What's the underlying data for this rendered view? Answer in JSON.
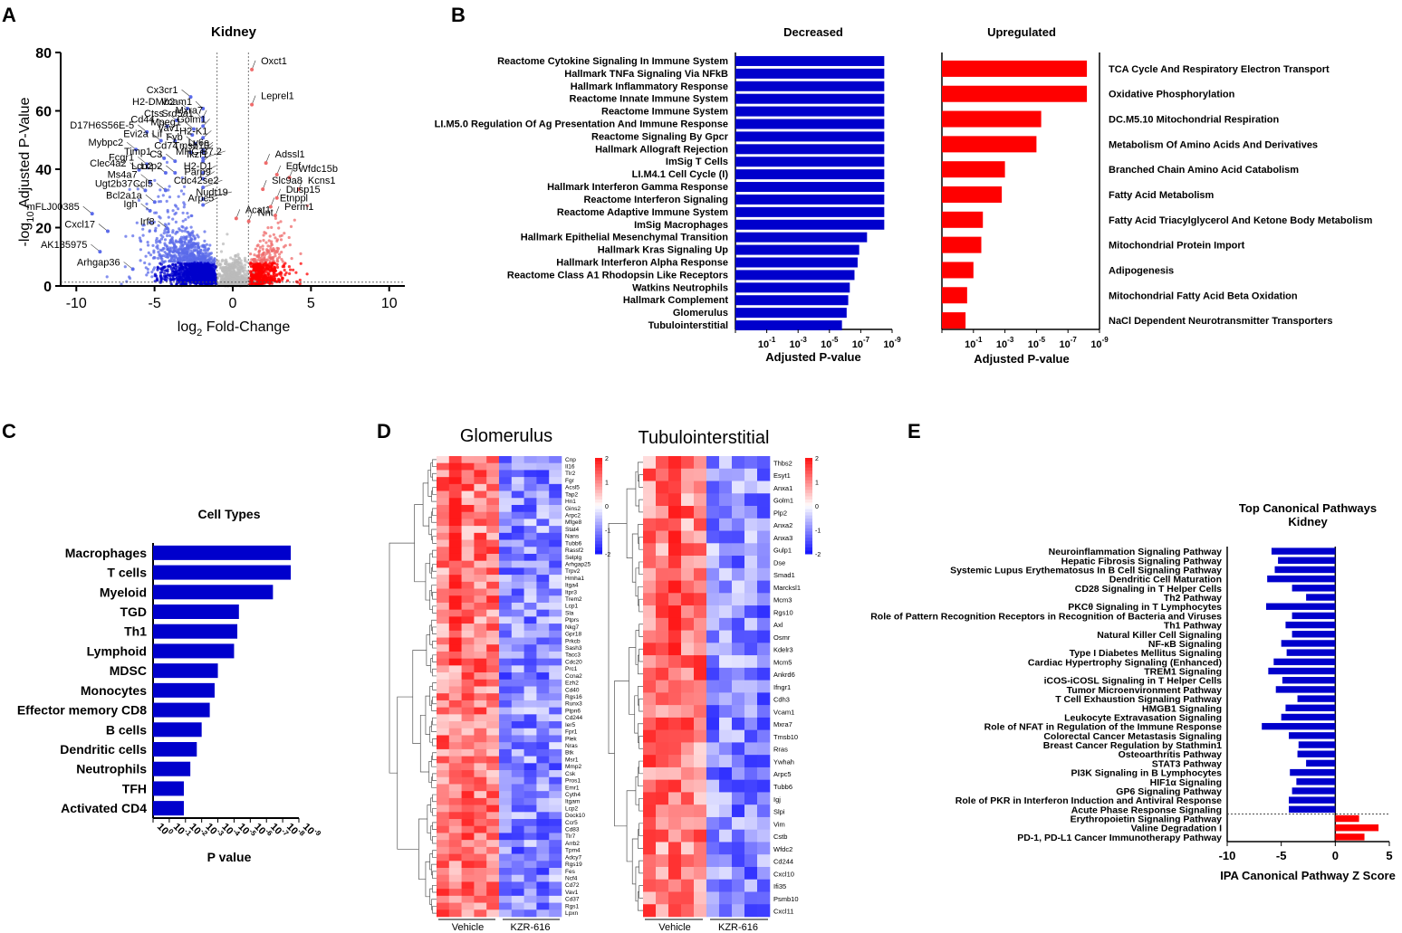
{
  "panels": {
    "A": {
      "letter": "A",
      "title": "Kidney",
      "xlabel": "log",
      "xlabel_sub": "2",
      "xlabel_rest": " Fold-Change",
      "ylabel_pre": "-log",
      "ylabel_sub": "10",
      "ylabel_rest": " Adjusted P-Value"
    },
    "B": {
      "letter": "B",
      "left_title": "Decreased",
      "right_title": "Upregulated",
      "xlabel": "Adjusted P-value"
    },
    "C": {
      "letter": "C",
      "title": "Cell Types",
      "xlabel": "P value"
    },
    "D": {
      "letter": "D",
      "left_title": "Glomerulus",
      "right_title": "Tubulointerstitial",
      "group1": "Vehicle",
      "group2": "KZR-616"
    },
    "E": {
      "letter": "E",
      "title_line1": "Top Canonical Pathways",
      "title_line2": "Kidney",
      "xlabel": "IPA Canonical Pathway Z Score"
    }
  },
  "chart_data": [
    {
      "panel": "A",
      "type": "scatter",
      "title": "Kidney",
      "xlim": [
        -11,
        11
      ],
      "ylim": [
        0,
        80
      ],
      "xticks": [
        -10,
        -5,
        0,
        5,
        10
      ],
      "yticks": [
        0,
        20,
        40,
        60,
        80
      ],
      "labeled_points": [
        {
          "label": "Oxct1",
          "x": 1.8,
          "y": 76
        },
        {
          "label": "Leprel1",
          "x": 1.8,
          "y": 64
        },
        {
          "label": "Cx3cr1",
          "x": -3.5,
          "y": 66
        },
        {
          "label": "Vcam1",
          "x": -2.6,
          "y": 62
        },
        {
          "label": "H2-DMb2",
          "x": -3.7,
          "y": 62
        },
        {
          "label": "Srd5a1",
          "x": -2.5,
          "y": 58
        },
        {
          "label": "Ctss",
          "x": -4.4,
          "y": 58
        },
        {
          "label": "Mxra7",
          "x": -1.9,
          "y": 59
        },
        {
          "label": "Cd44",
          "x": -5.0,
          "y": 56
        },
        {
          "label": "Mpeg1",
          "x": -3.3,
          "y": 55
        },
        {
          "label": "Golm1",
          "x": -1.7,
          "y": 56
        },
        {
          "label": "D17H6S56E-5",
          "x": -6.3,
          "y": 54
        },
        {
          "label": "Vav1",
          "x": -3.4,
          "y": 53
        },
        {
          "label": "H2-K1",
          "x": -1.6,
          "y": 52
        },
        {
          "label": "Evi2a",
          "x": -5.4,
          "y": 51
        },
        {
          "label": "Lif",
          "x": -4.5,
          "y": 51
        },
        {
          "label": "Fyb",
          "x": -3.2,
          "y": 50
        },
        {
          "label": "Ly6e",
          "x": -1.5,
          "y": 48
        },
        {
          "label": "Mybpc2",
          "x": -7.0,
          "y": 48
        },
        {
          "label": "Cd74",
          "x": -3.5,
          "y": 47
        },
        {
          "label": "Tmsb10",
          "x": -1.5,
          "y": 47
        },
        {
          "label": "Timp1",
          "x": -5.2,
          "y": 45
        },
        {
          "label": "C3",
          "x": -4.5,
          "y": 44
        },
        {
          "label": "Ikzf1",
          "x": -1.6,
          "y": 44
        },
        {
          "label": "MHC B7.2",
          "x": -0.7,
          "y": 45
        },
        {
          "label": "Adssl1",
          "x": 2.7,
          "y": 44
        },
        {
          "label": "Fcgr1",
          "x": -6.3,
          "y": 43
        },
        {
          "label": "Egf",
          "x": 3.4,
          "y": 40
        },
        {
          "label": "Clec4a2",
          "x": -6.8,
          "y": 41
        },
        {
          "label": "Lcn2",
          "x": -5.1,
          "y": 40
        },
        {
          "label": "Lcp2",
          "x": -4.5,
          "y": 40
        },
        {
          "label": "H2-D1",
          "x": -1.3,
          "y": 40
        },
        {
          "label": "Wfdc15b",
          "x": 4.2,
          "y": 39
        },
        {
          "label": "Ms4a7",
          "x": -6.1,
          "y": 37
        },
        {
          "label": "Parp9",
          "x": -1.4,
          "y": 38
        },
        {
          "label": "Kcns1",
          "x": 4.8,
          "y": 35
        },
        {
          "label": "Cdc42se2",
          "x": -0.9,
          "y": 35
        },
        {
          "label": "Slc9a8",
          "x": 2.5,
          "y": 35
        },
        {
          "label": "Ugt2b37",
          "x": -6.4,
          "y": 34
        },
        {
          "label": "Ccl5",
          "x": -5.1,
          "y": 34
        },
        {
          "label": "Dusp15",
          "x": 3.4,
          "y": 32
        },
        {
          "label": "Nudt19",
          "x": -0.3,
          "y": 31
        },
        {
          "label": "Bcl2a1a",
          "x": -5.8,
          "y": 30
        },
        {
          "label": "Etnppl",
          "x": 3.0,
          "y": 29
        },
        {
          "label": "Arpc5",
          "x": -1.2,
          "y": 29
        },
        {
          "label": "Igh",
          "x": -6.1,
          "y": 27
        },
        {
          "label": "Perm1",
          "x": 3.3,
          "y": 26
        },
        {
          "label": "mFLJ00385",
          "x": -9.8,
          "y": 26
        },
        {
          "label": "Acat1",
          "x": 0.8,
          "y": 25
        },
        {
          "label": "Nnt",
          "x": 1.6,
          "y": 24
        },
        {
          "label": "Irf8",
          "x": -5.0,
          "y": 21
        },
        {
          "label": "Cxcl17",
          "x": -8.8,
          "y": 20
        },
        {
          "label": "AK135975",
          "x": -9.3,
          "y": 13
        },
        {
          "label": "Arhgap36",
          "x": -7.2,
          "y": 7
        }
      ]
    },
    {
      "panel": "B-decreased",
      "type": "bar",
      "orientation": "horizontal",
      "xaxis": "-log10 adjusted P-value",
      "xticks": [
        "10",
        "-1",
        "10",
        "-3",
        "10",
        "-5",
        "10",
        "-7",
        "10",
        "-9"
      ],
      "xlim": [
        1,
        -9
      ],
      "categories": [
        "Reactome Cytokine Signaling In Immune System",
        "Hallmark TNFa Signaling Via NFkB",
        "Hallmark Inflammatory Response",
        "Reactome Innate Immune System",
        "Reactome Immune System",
        "LI.M5.0 Regulation Of Ag Presentation And Immune Response",
        "Reactome Signaling By Gpcr",
        "Hallmark Allograft Rejection",
        "ImSig T Cells",
        "LI.M4.1 Cell Cycle (I)",
        "Hallmark Interferon Gamma Response",
        "Reactome Interferon Signaling",
        "Reactome Adaptive Immune System",
        "ImSig Macrophages",
        "Hallmark Epithelial Mesenchymal Transition",
        "Hallmark Kras Signaling Up",
        "Hallmark Interferon Alpha Response",
        "Reactome Class A1 Rhodopsin Like Receptors",
        "Watkins Neutrophils",
        "Hallmark Complement",
        "Glomerulus",
        "Tubulointerstitial"
      ],
      "values": [
        -8.5,
        -8.5,
        -8.5,
        -8.5,
        -8.5,
        -8.5,
        -8.5,
        -8.5,
        -8.5,
        -8.5,
        -8.5,
        -8.5,
        -8.5,
        -8.5,
        -7.4,
        -6.9,
        -6.8,
        -6.6,
        -6.3,
        -6.2,
        -6.1,
        -5.8
      ]
    },
    {
      "panel": "B-upregulated",
      "type": "bar",
      "orientation": "horizontal",
      "xaxis": "-log10 adjusted P-value",
      "xlim": [
        1,
        -9
      ],
      "categories": [
        "TCA Cycle And Respiratory Electron Transport",
        "Oxidative Phosphorylation",
        "DC.M5.10 Mitochondrial Respiration",
        "Metabolism Of Amino Acids And Derivatives",
        "Branched Chain Amino Acid Catabolism",
        "Fatty Acid Metabolism",
        "Fatty Acid Triacylglycerol And Ketone Body Metabolism",
        "Mitochondrial Protein Import",
        "Adipogenesis",
        "Mitochondrial Fatty Acid Beta Oxidation",
        "NaCl Dependent Neurotransmitter Transporters"
      ],
      "values": [
        -8.2,
        -8.2,
        -5.3,
        -5.0,
        -3.0,
        -2.8,
        -1.6,
        -1.5,
        -1.0,
        -0.6,
        -0.5
      ]
    },
    {
      "panel": "C",
      "type": "bar",
      "orientation": "horizontal",
      "title": "Cell Types",
      "xlabel": "P value",
      "xticks": [
        "10",
        "0",
        "10",
        "-1",
        "10",
        "-2",
        "10",
        "-3",
        "10",
        "-4",
        "10",
        "-5",
        "10",
        "-6",
        "10",
        "-7",
        "10",
        "-8",
        "10",
        "-9"
      ],
      "xlim": [
        0,
        -9
      ],
      "categories": [
        "Macrophages",
        "T cells",
        "Myeloid",
        "TGD",
        "Th1",
        "Lymphoid",
        "MDSC",
        "Monocytes",
        "Effector memory CD8",
        "B cells",
        "Dendritic cells",
        "Neutrophils",
        "TFH",
        "Activated CD4"
      ],
      "values": [
        -8.5,
        -8.5,
        -7.4,
        -5.3,
        -5.2,
        -5.0,
        -4.0,
        -3.8,
        -3.5,
        -3.0,
        -2.7,
        -2.3,
        -1.9,
        -1.9
      ]
    },
    {
      "panel": "D-glomerulus",
      "type": "heatmap",
      "title": "Glomerulus",
      "groups": [
        "Vehicle",
        "KZR-616"
      ],
      "colorbar_ticks": [
        "2",
        "1",
        "0",
        "-1",
        "-2"
      ],
      "rows": [
        "Cnp",
        "Il16",
        "Tlr2",
        "Fgr",
        "Acsl5",
        "Tap2",
        "Hn1",
        "Gins2",
        "Arpc2",
        "Mfge8",
        "Stat4",
        "Nans",
        "Tubb6",
        "Rassf2",
        "Selplg",
        "Arhgap25",
        "Trpv2",
        "Hmha1",
        "Itga4",
        "Itpr3",
        "Trem2",
        "Lcp1",
        "Sla",
        "Ptprs",
        "Nkg7",
        "Gpr18",
        "Prkcb",
        "Sash3",
        "Tacc3",
        "Cdc20",
        "Prc1",
        "Ccna2",
        "Ezh2",
        "Cd40",
        "Rgs16",
        "Runx3",
        "Ptpn6",
        "Cd244",
        "Ier5",
        "Fpr1",
        "Plek",
        "Nras",
        "Btk",
        "Msr1",
        "Mmp2",
        "Csk",
        "Pros1",
        "Emr1",
        "Cyth4",
        "Itgam",
        "Lcp2",
        "Dock10",
        "Ccr5",
        "Cd83",
        "Tlr7",
        "Arrb2",
        "Tpm4",
        "Adcy7",
        "Rgs19",
        "Fes",
        "Ncf4",
        "Cd72",
        "Vav1",
        "Cd37",
        "Rgs1",
        "Lpxn"
      ],
      "n_columns": 10
    },
    {
      "panel": "D-tubulointerstitial",
      "type": "heatmap",
      "title": "Tubulointerstitial",
      "groups": [
        "Vehicle",
        "KZR-616"
      ],
      "colorbar_ticks": [
        "2",
        "1",
        "0",
        "-1",
        "-2"
      ],
      "rows": [
        "Thbs2",
        "Esyt1",
        "Anxa1",
        "Golm1",
        "Plp2",
        "Anxa2",
        "Anxa3",
        "Gulp1",
        "Dse",
        "Smad1",
        "Marcksl1",
        "Mcm3",
        "Rgs10",
        "Axl",
        "Osmr",
        "Kdelr3",
        "Mcm5",
        "Ankrd6",
        "Ifngr1",
        "Cdh3",
        "Vcam1",
        "Mxra7",
        "Tmsb10",
        "Rras",
        "Ywhah",
        "Arpc5",
        "Tubb6",
        "Igj",
        "Slpi",
        "Vim",
        "Cstb",
        "Wfdc2",
        "Cd244",
        "Cxcl10",
        "Ifi35",
        "Psmb10",
        "Cxcl11"
      ],
      "n_columns": 10
    },
    {
      "panel": "E",
      "type": "bar",
      "orientation": "horizontal",
      "title": "Top Canonical Pathways Kidney",
      "xlabel": "IPA Canonical Pathway Z Score",
      "xlim": [
        -10,
        5
      ],
      "xticks": [
        -10,
        -5,
        0,
        5
      ],
      "categories": [
        "Neuroinflammation Signaling Pathway",
        "Hepatic Fibrosis Signaling Pathway",
        "Systemic Lupus Erythematosus In B Cell Signaling Pathway",
        "Dendritic Cell Maturation",
        "CD28 Signaling in T Helper Cells",
        "Th2 Pathway",
        "PKCθ Signaling in T Lymphocytes",
        "Role of Pattern Recognition Receptors in Recognition of Bacteria and Viruses",
        "Th1 Pathway",
        "Natural Killer Cell Signaling",
        "NF-κB Signaling",
        "Type I Diabetes Mellitus Signaling",
        "Cardiac Hypertrophy Signaling (Enhanced)",
        "TREM1 Signaling",
        "iCOS-iCOSL Signaling in T Helper Cells",
        "Tumor Microenvironment Pathway",
        "T Cell Exhaustion Signaling Pathway",
        "HMGB1 Signaling",
        "Leukocyte Extravasation Signaling",
        "Role of NFAT in Regulation of the Immune Response",
        "Colorectal Cancer Metastasis Signaling",
        "Breast Cancer Regulation by Stathmin1",
        "Osteoarthritis Pathway",
        "STAT3 Pathway",
        "PI3K Signaling in B Lymphocytes",
        "HIF1α Signaling",
        "GP6 Signaling Pathway",
        "Role of PKR in Interferon Induction and Antiviral Response",
        "Acute Phase Response Signaling",
        "Erythropoietin Signaling Pathway",
        "Valine Degradation I",
        "PD-1, PD-L1 Cancer Immunotherapy Pathway"
      ],
      "values": [
        -5.9,
        -5.3,
        -5.6,
        -6.3,
        -4.0,
        -2.7,
        -6.4,
        -4.0,
        -4.6,
        -4.0,
        -5.0,
        -4.5,
        -5.7,
        -6.2,
        -4.9,
        -5.5,
        -3.5,
        -4.6,
        -5.0,
        -6.8,
        -4.3,
        -3.4,
        -3.5,
        -2.7,
        -4.2,
        -3.6,
        -4.0,
        -4.3,
        -4.3,
        2.2,
        4.0,
        2.7
      ]
    }
  ],
  "colors": {
    "blue": "#0000cc",
    "red": "#ff0000",
    "grey": "#bbbbbb",
    "light_blue": "#5b6bea",
    "light_red": "#ef6b6b"
  }
}
